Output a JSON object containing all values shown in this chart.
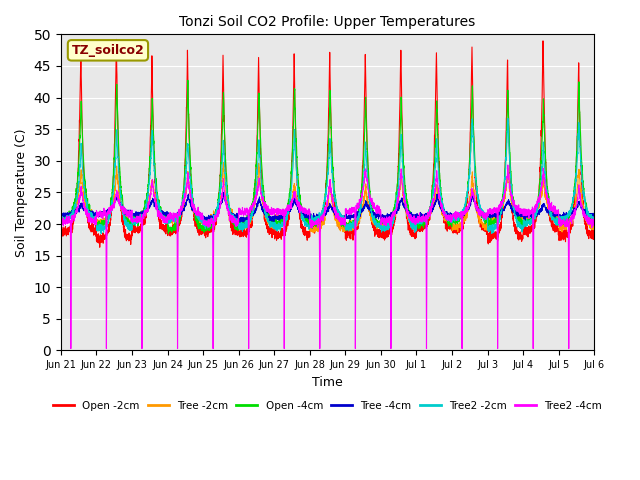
{
  "title": "Tonzi Soil CO2 Profile: Upper Temperatures",
  "ylabel": "Soil Temperature (C)",
  "xlabel": "Time",
  "ylim": [
    0,
    50
  ],
  "bg_color": "#e8e8e8",
  "label_box_text": "TZ_soilco2",
  "label_box_bg": "#ffffcc",
  "label_box_edge": "#999900",
  "series_colors": [
    "#ff0000",
    "#ff9900",
    "#00dd00",
    "#0000cc",
    "#00cccc",
    "#ff00ff"
  ],
  "series_labels": [
    "Open -2cm",
    "Tree -2cm",
    "Open -4cm",
    "Tree -4cm",
    "Tree2 -2cm",
    "Tree2 -4cm"
  ],
  "tick_labels": [
    "Jun 21",
    "Jun 22",
    "Jun 23",
    "Jun 24",
    "Jun 25",
    "Jun 26",
    "Jun 27",
    "Jun 28",
    "Jun 29",
    "Jun 30",
    "Jul 1",
    "Jul 2",
    "Jul 3",
    "Jul 4",
    "Jul 5",
    "Jul 6"
  ],
  "n_days": 16,
  "points_per_day": 240
}
